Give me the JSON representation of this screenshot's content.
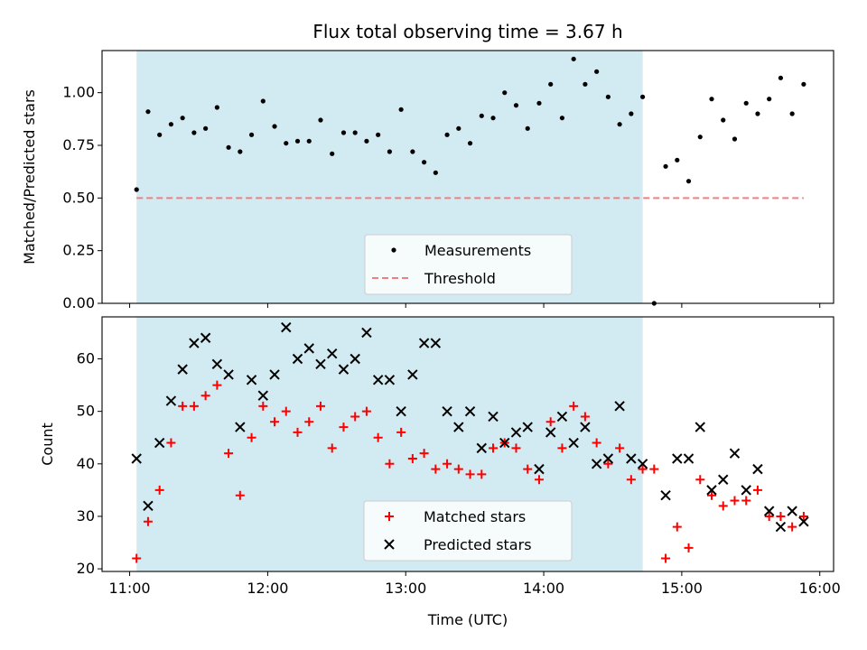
{
  "title": "Flux total observing time = 3.67 h",
  "colors": {
    "shade": "#add8e6",
    "measurement": "#000000",
    "threshold": "#f08080",
    "matched": "#ff0000",
    "predicted": "#000000"
  },
  "chart_data": [
    {
      "type": "scatter",
      "ylabel": "Matched/Predicted stars",
      "xlim": [
        "10:48",
        "16:06"
      ],
      "ylim": [
        0,
        1.2
      ],
      "yticks": [
        "0.00",
        "0.25",
        "0.50",
        "0.75",
        "1.00"
      ],
      "grid": false,
      "legend_position": "lower-center",
      "shaded_interval": [
        "11:03",
        "14:43"
      ],
      "series": [
        {
          "name": "Measurements",
          "marker": "dot",
          "x": [
            "11:03",
            "11:08",
            "11:13",
            "11:18",
            "11:23",
            "11:28",
            "11:33",
            "11:38",
            "11:43",
            "11:48",
            "11:53",
            "11:58",
            "12:03",
            "12:08",
            "12:13",
            "12:18",
            "12:23",
            "12:28",
            "12:33",
            "12:38",
            "12:43",
            "12:48",
            "12:53",
            "12:58",
            "13:03",
            "13:08",
            "13:13",
            "13:18",
            "13:23",
            "13:28",
            "13:33",
            "13:38",
            "13:43",
            "13:48",
            "13:53",
            "13:58",
            "14:03",
            "14:08",
            "14:13",
            "14:18",
            "14:23",
            "14:28",
            "14:33",
            "14:38",
            "14:43",
            "14:48",
            "14:53",
            "14:58",
            "15:03",
            "15:08",
            "15:13",
            "15:18",
            "15:23",
            "15:28",
            "15:33",
            "15:38",
            "15:43",
            "15:48",
            "15:53"
          ],
          "y": [
            0.54,
            0.91,
            0.8,
            0.85,
            0.88,
            0.81,
            0.83,
            0.93,
            0.74,
            0.72,
            0.8,
            0.96,
            0.84,
            0.76,
            0.77,
            0.77,
            0.87,
            0.71,
            0.81,
            0.81,
            0.77,
            0.8,
            0.72,
            0.92,
            0.72,
            0.67,
            0.62,
            0.8,
            0.83,
            0.76,
            0.89,
            0.88,
            1.0,
            0.94,
            0.83,
            0.95,
            1.04,
            0.88,
            1.16,
            1.04,
            1.1,
            0.98,
            0.85,
            0.9,
            0.98,
            0.0,
            0.65,
            0.68,
            0.58,
            0.79,
            0.97,
            0.87,
            0.78,
            0.95,
            0.9,
            0.97,
            1.07,
            0.9,
            1.04
          ]
        },
        {
          "name": "Threshold",
          "style": "dashed",
          "x": [
            "11:03",
            "15:53"
          ],
          "y": [
            0.5,
            0.5
          ]
        }
      ]
    },
    {
      "type": "scatter",
      "xlabel": "Time (UTC)",
      "ylabel": "Count",
      "xlim": [
        "10:48",
        "16:06"
      ],
      "ylim": [
        19.5,
        68
      ],
      "xticks": [
        "11:00",
        "12:00",
        "13:00",
        "14:00",
        "15:00",
        "16:00"
      ],
      "yticks": [
        "20",
        "30",
        "40",
        "50",
        "60"
      ],
      "grid": false,
      "legend_position": "lower-center",
      "shaded_interval": [
        "11:03",
        "14:43"
      ],
      "series": [
        {
          "name": "Matched stars",
          "marker": "plus",
          "x": [
            "11:03",
            "11:08",
            "11:13",
            "11:18",
            "11:23",
            "11:28",
            "11:33",
            "11:38",
            "11:43",
            "11:48",
            "11:53",
            "11:58",
            "12:03",
            "12:08",
            "12:13",
            "12:18",
            "12:23",
            "12:28",
            "12:33",
            "12:38",
            "12:43",
            "12:48",
            "12:53",
            "12:58",
            "13:03",
            "13:08",
            "13:13",
            "13:18",
            "13:23",
            "13:28",
            "13:33",
            "13:38",
            "13:43",
            "13:48",
            "13:53",
            "13:58",
            "14:03",
            "14:08",
            "14:13",
            "14:18",
            "14:23",
            "14:28",
            "14:33",
            "14:38",
            "14:43",
            "14:48",
            "14:53",
            "14:58",
            "15:03",
            "15:08",
            "15:13",
            "15:18",
            "15:23",
            "15:28",
            "15:33",
            "15:38",
            "15:43",
            "15:48",
            "15:53"
          ],
          "y": [
            22,
            29,
            35,
            44,
            51,
            51,
            53,
            55,
            42,
            34,
            45,
            51,
            48,
            50,
            46,
            48,
            51,
            43,
            47,
            49,
            50,
            45,
            40,
            46,
            41,
            42,
            39,
            40,
            39,
            38,
            38,
            43,
            44,
            43,
            39,
            37,
            48,
            43,
            51,
            49,
            44,
            40,
            43,
            37,
            39,
            39,
            22,
            28,
            24,
            37,
            34,
            32,
            33,
            33,
            35,
            30,
            30,
            28,
            30
          ]
        },
        {
          "name": "Predicted stars",
          "marker": "x",
          "x": [
            "11:03",
            "11:08",
            "11:13",
            "11:18",
            "11:23",
            "11:28",
            "11:33",
            "11:38",
            "11:43",
            "11:48",
            "11:53",
            "11:58",
            "12:03",
            "12:08",
            "12:13",
            "12:18",
            "12:23",
            "12:28",
            "12:33",
            "12:38",
            "12:43",
            "12:48",
            "12:53",
            "12:58",
            "13:03",
            "13:08",
            "13:13",
            "13:18",
            "13:23",
            "13:28",
            "13:33",
            "13:38",
            "13:43",
            "13:48",
            "13:53",
            "13:58",
            "14:03",
            "14:08",
            "14:13",
            "14:18",
            "14:23",
            "14:28",
            "14:33",
            "14:38",
            "14:43",
            "14:48",
            "14:53",
            "14:58",
            "15:03",
            "15:08",
            "15:13",
            "15:18",
            "15:23",
            "15:28",
            "15:33",
            "15:38",
            "15:43",
            "15:48",
            "15:53"
          ],
          "y": [
            41,
            32,
            44,
            52,
            58,
            63,
            64,
            59,
            57,
            47,
            56,
            53,
            57,
            66,
            60,
            62,
            59,
            61,
            58,
            60,
            65,
            56,
            56,
            50,
            57,
            63,
            63,
            50,
            47,
            50,
            43,
            49,
            44,
            46,
            47,
            39,
            46,
            49,
            44,
            47,
            40,
            41,
            51,
            41,
            40,
            null,
            34,
            41,
            41,
            47,
            35,
            37,
            42,
            35,
            39,
            31,
            28,
            31,
            29
          ]
        }
      ]
    }
  ]
}
